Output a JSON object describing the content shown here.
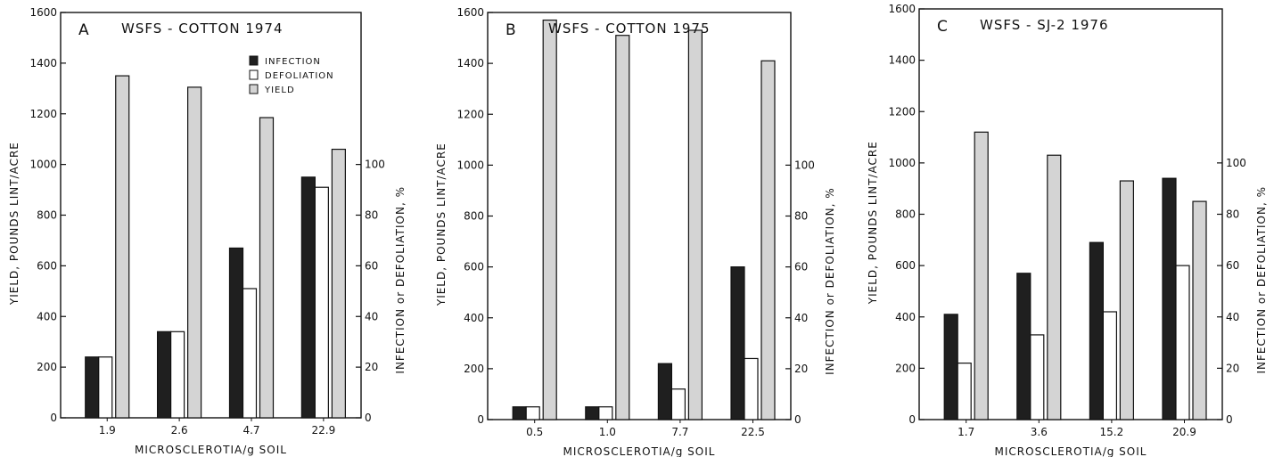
{
  "colors": {
    "infection": "#1f1f1f",
    "defoliation": "#ffffff",
    "yield": "#d4d4d4",
    "axis": "#111111"
  },
  "legend": {
    "infection": "INFECTION",
    "defoliation": "DEFOLIATION",
    "yield": "YIELD"
  },
  "chart_data": [
    {
      "type": "bar",
      "panel": "A",
      "title": "WSFS - COTTON   1974",
      "xlabel": "MICROSCLEROTIA/g SOIL",
      "ylabel": "YIELD, POUNDS LINT/ACRE",
      "y2label": "INFECTION or DEFOLIATION, %",
      "ylim": [
        0,
        1600
      ],
      "y2lim": [
        0,
        100
      ],
      "yticks": [
        0,
        200,
        400,
        600,
        800,
        1000,
        1200,
        1400,
        1600
      ],
      "y2ticks": [
        0,
        20,
        40,
        60,
        80,
        100
      ],
      "categories": [
        "1.9",
        "2.6",
        "4.7",
        "22.9"
      ],
      "series": [
        {
          "name": "INFECTION",
          "axis": "right",
          "values": [
            24,
            34,
            67,
            95
          ]
        },
        {
          "name": "DEFOLIATION",
          "axis": "right",
          "values": [
            24,
            34,
            51,
            91
          ]
        },
        {
          "name": "YIELD",
          "axis": "left",
          "values": [
            1350,
            1305,
            1185,
            1060
          ]
        }
      ],
      "legend_position": "top-right",
      "grid": false
    },
    {
      "type": "bar",
      "panel": "B",
      "title": "WSFS - COTTON   1975",
      "xlabel": "MICROSCLEROTIA/g SOIL",
      "ylabel": "YIELD, POUNDS LINT/ACRE",
      "y2label": "INFECTION or DEFOLIATION, %",
      "ylim": [
        0,
        1600
      ],
      "y2lim": [
        0,
        100
      ],
      "yticks": [
        0,
        200,
        400,
        600,
        800,
        1000,
        1200,
        1400,
        1600
      ],
      "y2ticks": [
        0,
        20,
        40,
        60,
        80,
        100
      ],
      "categories": [
        "0.5",
        "1.0",
        "7.7",
        "22.5"
      ],
      "series": [
        {
          "name": "INFECTION",
          "axis": "right",
          "values": [
            5,
            5,
            22,
            60
          ]
        },
        {
          "name": "DEFOLIATION",
          "axis": "right",
          "values": [
            5,
            5,
            12,
            24
          ]
        },
        {
          "name": "YIELD",
          "axis": "left",
          "values": [
            1570,
            1510,
            1530,
            1410
          ]
        }
      ],
      "grid": false
    },
    {
      "type": "bar",
      "panel": "C",
      "title": "WSFS - SJ-2   1976",
      "xlabel": "MICROSCLEROTIA/g SOIL",
      "ylabel": "YIELD, POUNDS LINT/ACRE",
      "y2label": "INFECTION or DEFOLIATION, %",
      "ylim": [
        0,
        1600
      ],
      "y2lim": [
        0,
        100
      ],
      "yticks": [
        0,
        200,
        400,
        600,
        800,
        1000,
        1200,
        1400,
        1600
      ],
      "y2ticks": [
        0,
        20,
        40,
        60,
        80,
        100
      ],
      "categories": [
        "1.7",
        "3.6",
        "15.2",
        "20.9"
      ],
      "series": [
        {
          "name": "INFECTION",
          "axis": "right",
          "values": [
            41,
            57,
            69,
            94
          ]
        },
        {
          "name": "DEFOLIATION",
          "axis": "right",
          "values": [
            22,
            33,
            42,
            60
          ]
        },
        {
          "name": "YIELD",
          "axis": "left",
          "values": [
            1120,
            1030,
            930,
            850
          ]
        }
      ],
      "grid": false
    }
  ]
}
